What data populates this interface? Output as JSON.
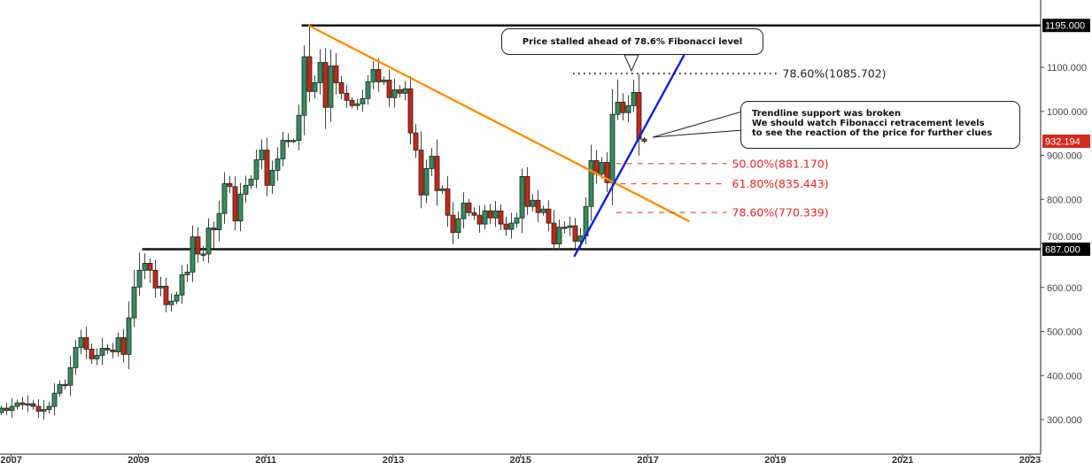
{
  "chart_data": {
    "type": "candlestick",
    "interval": "monthly",
    "start_month": "2006-12",
    "first_open": 316,
    "closes": [
      326,
      321,
      330,
      338,
      334,
      336,
      330,
      319,
      323,
      330,
      360,
      380,
      378,
      418,
      464,
      486,
      460,
      438,
      446,
      462,
      458,
      454,
      486,
      448,
      531,
      601,
      639,
      655,
      639,
      599,
      603,
      561,
      569,
      583,
      629,
      635,
      715,
      676,
      676,
      735,
      731,
      768,
      836,
      829,
      751,
      812,
      832,
      846,
      890,
      912,
      832,
      866,
      892,
      934,
      932,
      934,
      991,
      1124,
      1045,
      1065,
      1111,
      1009,
      1103,
      1065,
      1041,
      1025,
      1013,
      1017,
      1029,
      1067,
      1095,
      1067,
      1071,
      1031,
      1049,
      1041,
      1051,
      951,
      912,
      810,
      870,
      898,
      820,
      824,
      764,
      725,
      756,
      792,
      770,
      764,
      744,
      774,
      758,
      774,
      744,
      732,
      746,
      758,
      852,
      784,
      798,
      770,
      778,
      746,
      699,
      737,
      736,
      740,
      705,
      717,
      784,
      888,
      858,
      884,
      838,
      993,
      1021,
      997,
      1013,
      1043,
      937,
      932.194
    ],
    "high_overrides": {
      "58": 1195,
      "57": 1150,
      "116": 1072,
      "119": 1072,
      "98": 870,
      "25": 640,
      "26": 680
    },
    "low_overrides": {
      "104": 687,
      "61": 960,
      "79": 780,
      "28": 610,
      "40": 690
    },
    "ylim": [
      240,
      1210
    ],
    "y_ticks": [
      "300.000",
      "400.000",
      "500.000",
      "600.000",
      "700.000",
      "800.000",
      "900.000",
      "1000.000",
      "1100.000"
    ],
    "y_tick_values": [
      300,
      400,
      500,
      600,
      700,
      800,
      900,
      1000,
      1100
    ],
    "x_ticks": [
      "2007",
      "2009",
      "2011",
      "2013",
      "2015",
      "2017",
      "2019",
      "2021",
      "2023"
    ],
    "price_labels": [
      {
        "value": 1195,
        "text": "1195.000",
        "color": "#000000"
      },
      {
        "value": 687,
        "text": "687.000",
        "color": "#000000"
      },
      {
        "value": 932.194,
        "text": "932.194",
        "color": "#d42a1e"
      }
    ],
    "horizontal_levels": [
      {
        "value": 1195,
        "from_index": 56.5
      },
      {
        "value": 687,
        "from_index": 26.5
      }
    ],
    "trendlines": [
      {
        "name": "resistance",
        "color": "#ff8c00",
        "from": [
          57.8,
          1195
        ],
        "to": [
          129.5,
          750
        ]
      },
      {
        "name": "support",
        "color": "#0a1fe6",
        "from": [
          107.8,
          670
        ],
        "to": [
          128.5,
          1128
        ]
      }
    ],
    "fib_levels": [
      {
        "label": "78.60%(1085.702)",
        "value": 1085.702,
        "style": "dotted",
        "color": "#222222",
        "from_index": 107.6,
        "to_index": 146
      },
      {
        "label": "50.00%(881.170)",
        "value": 881.17,
        "style": "dashed",
        "color": "#ee2222",
        "from_index": 115.7,
        "to_index": 136.5
      },
      {
        "label": "61.80%(835.443)",
        "value": 835.443,
        "style": "dashed",
        "color": "#555555",
        "from_index": 116.5,
        "to_index": 136.5
      },
      {
        "label": "78.60%(770.339)",
        "value": 770.339,
        "style": "dashed",
        "color": "#555555",
        "from_index": 115.7,
        "to_index": 136.5
      }
    ],
    "colors": {
      "up": "#3a8a5c",
      "down": "#cc2418",
      "border": "#0f2a1a"
    },
    "annotations": [
      {
        "lines": [
          "Price stalled ahead of 78.6% Fibonacci level"
        ]
      },
      {
        "lines": [
          "Trendline support was broken",
          "We should watch Fibonacci retracement levels",
          "to see the reaction of the price for further clues"
        ]
      }
    ]
  }
}
